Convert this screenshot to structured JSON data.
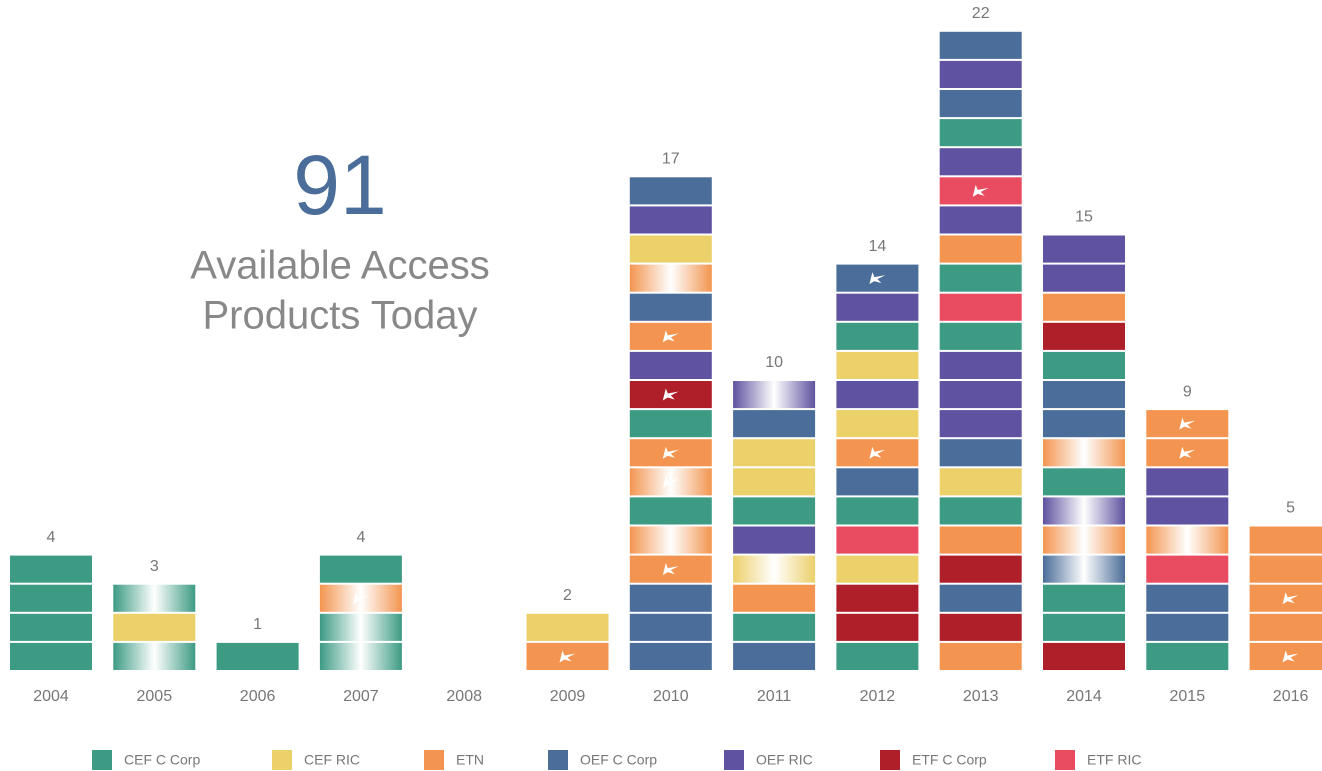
{
  "headline": {
    "number": "91",
    "lines": [
      "Available Access",
      "Products Today"
    ]
  },
  "chart_data": {
    "type": "unit-stack",
    "categories": [
      "2004",
      "2005",
      "2006",
      "2007",
      "2008",
      "2009",
      "2010",
      "2011",
      "2012",
      "2013",
      "2014",
      "2015",
      "2016"
    ],
    "values": [
      4,
      3,
      1,
      4,
      null,
      2,
      17,
      10,
      14,
      22,
      15,
      9,
      5
    ],
    "series": [
      {
        "name": "CEF C Corp",
        "color": "#3d9b84"
      },
      {
        "name": "CEF RIC",
        "color": "#ecd06a"
      },
      {
        "name": "ETN",
        "color": "#f39550"
      },
      {
        "name": "OEF C Corp",
        "color": "#4a6d99"
      },
      {
        "name": "OEF RIC",
        "color": "#5f52a0"
      },
      {
        "name": "ETF C Corp",
        "color": "#ae1f2a"
      },
      {
        "name": "ETF RIC",
        "color": "#e94c60"
      }
    ],
    "blocks": [
      [
        {
          "s": 0
        },
        {
          "s": 0
        },
        {
          "s": 0
        },
        {
          "s": 0
        }
      ],
      [
        {
          "s": 0,
          "faded": true
        },
        {
          "s": 1
        },
        {
          "s": 0,
          "faded": true
        }
      ],
      [
        {
          "s": 0
        }
      ],
      [
        {
          "s": 0,
          "faded": true
        },
        {
          "s": 0,
          "faded": true
        },
        {
          "s": 2,
          "faded": true,
          "icon": true
        },
        {
          "s": 0
        }
      ],
      [],
      [
        {
          "s": 2,
          "icon": true
        },
        {
          "s": 1
        }
      ],
      [
        {
          "s": 3
        },
        {
          "s": 3
        },
        {
          "s": 3
        },
        {
          "s": 2,
          "icon": true
        },
        {
          "s": 2,
          "faded": true
        },
        {
          "s": 0
        },
        {
          "s": 2,
          "faded": true,
          "icon": true
        },
        {
          "s": 2,
          "icon": true
        },
        {
          "s": 0
        },
        {
          "s": 5,
          "icon": true
        },
        {
          "s": 4
        },
        {
          "s": 2,
          "icon": true
        },
        {
          "s": 3
        },
        {
          "s": 2,
          "faded": true
        },
        {
          "s": 1
        },
        {
          "s": 4
        },
        {
          "s": 3
        }
      ],
      [
        {
          "s": 3
        },
        {
          "s": 0
        },
        {
          "s": 2
        },
        {
          "s": 1,
          "faded": true
        },
        {
          "s": 4
        },
        {
          "s": 0
        },
        {
          "s": 1
        },
        {
          "s": 1
        },
        {
          "s": 3
        },
        {
          "s": 4,
          "faded": true
        }
      ],
      [
        {
          "s": 0
        },
        {
          "s": 5
        },
        {
          "s": 5
        },
        {
          "s": 1
        },
        {
          "s": 6
        },
        {
          "s": 0
        },
        {
          "s": 3
        },
        {
          "s": 2,
          "icon": true
        },
        {
          "s": 1
        },
        {
          "s": 4
        },
        {
          "s": 1
        },
        {
          "s": 0
        },
        {
          "s": 4
        },
        {
          "s": 3,
          "icon": true
        }
      ],
      [
        {
          "s": 2
        },
        {
          "s": 5
        },
        {
          "s": 3
        },
        {
          "s": 5
        },
        {
          "s": 2
        },
        {
          "s": 0
        },
        {
          "s": 1
        },
        {
          "s": 3
        },
        {
          "s": 4
        },
        {
          "s": 4
        },
        {
          "s": 4
        },
        {
          "s": 0
        },
        {
          "s": 6
        },
        {
          "s": 0
        },
        {
          "s": 2
        },
        {
          "s": 4
        },
        {
          "s": 6,
          "icon": true
        },
        {
          "s": 4
        },
        {
          "s": 0
        },
        {
          "s": 3
        },
        {
          "s": 4
        },
        {
          "s": 3
        }
      ],
      [
        {
          "s": 5
        },
        {
          "s": 0
        },
        {
          "s": 0
        },
        {
          "s": 3,
          "faded": true
        },
        {
          "s": 2,
          "faded": true
        },
        {
          "s": 4,
          "faded": true
        },
        {
          "s": 0
        },
        {
          "s": 2,
          "faded": true
        },
        {
          "s": 3
        },
        {
          "s": 3
        },
        {
          "s": 0
        },
        {
          "s": 5
        },
        {
          "s": 2
        },
        {
          "s": 4
        },
        {
          "s": 4
        }
      ],
      [
        {
          "s": 0
        },
        {
          "s": 3
        },
        {
          "s": 3
        },
        {
          "s": 6
        },
        {
          "s": 2,
          "faded": true
        },
        {
          "s": 4
        },
        {
          "s": 4
        },
        {
          "s": 2,
          "icon": true
        },
        {
          "s": 2,
          "icon": true
        }
      ],
      [
        {
          "s": 2,
          "icon": true
        },
        {
          "s": 2
        },
        {
          "s": 2,
          "icon": true
        },
        {
          "s": 2
        },
        {
          "s": 2
        }
      ]
    ]
  }
}
